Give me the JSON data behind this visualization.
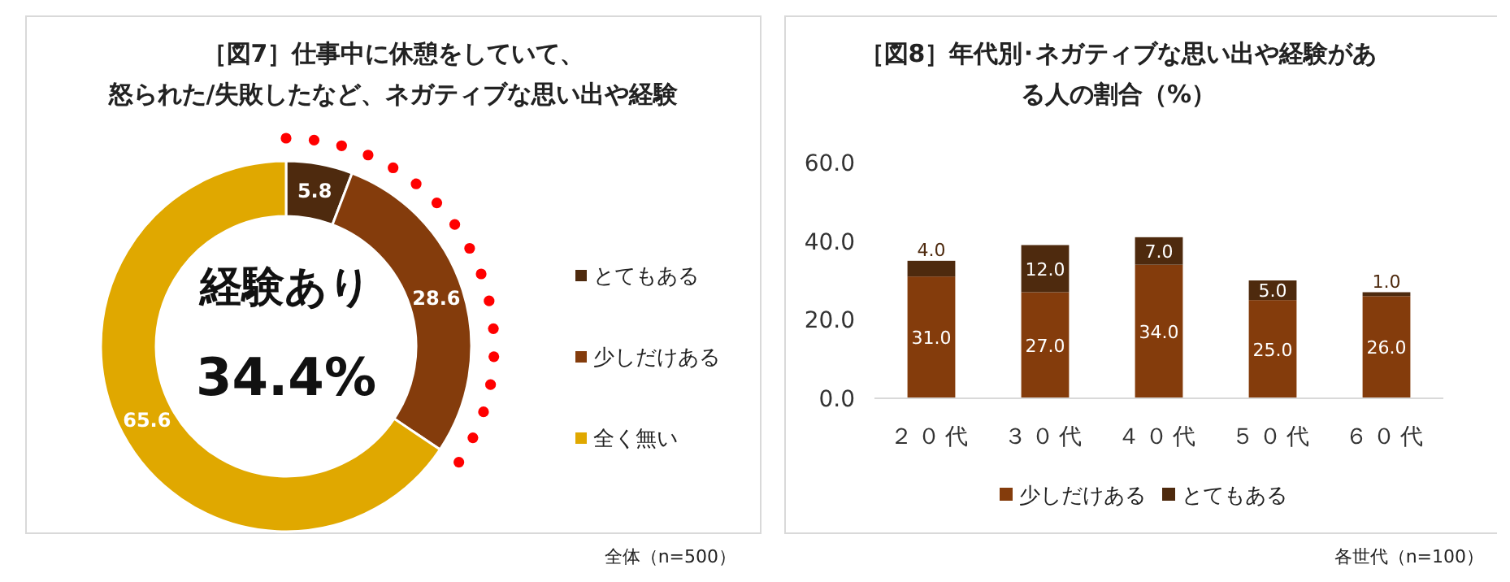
{
  "chart_data": [
    {
      "type": "donut",
      "title": "［図7］仕事中に休憩をしていて、怒られた/失敗したなど、ネガティブな思い出や経験",
      "categories": [
        "とてもある",
        "少しだけある",
        "全く無い"
      ],
      "values": [
        5.8,
        28.6,
        65.6
      ],
      "colors": [
        "#4e2a0e",
        "#843c0c",
        "#e0a800"
      ],
      "data_labels": true,
      "legend": "right",
      "annotations": [
        "経験あり",
        "34.4%",
        "全体（n=500）"
      ]
    },
    {
      "type": "bar",
      "title": "［図8］年代別･ネガティブな思い出や経験がある人の割合（%）",
      "categories": [
        "２０代",
        "３０代",
        "４０代",
        "５０代",
        "６０代"
      ],
      "stacked": true,
      "ylim": [
        0,
        60
      ],
      "yticks": [
        {
          "value": 0,
          "label": "0.0"
        },
        {
          "value": 20,
          "label": "20.0"
        },
        {
          "value": 40,
          "label": "40.0"
        },
        {
          "value": 60,
          "label": "60.0"
        }
      ],
      "legend": "bottom",
      "annotations": [
        "各世代（n=100）"
      ],
      "series": [
        {
          "name": "少しだけある",
          "color": "#843c0c",
          "values": [
            31.0,
            27.0,
            34.0,
            25.0,
            26.0
          ],
          "value_labels": [
            "31.0",
            "27.0",
            "34.0",
            "25.0",
            "26.0"
          ]
        },
        {
          "name": "とてもある",
          "color": "#4e2a0e",
          "values": [
            4.0,
            12.0,
            7.0,
            5.0,
            1.0
          ],
          "value_labels": [
            "4.0",
            "12.0",
            "7.0",
            "5.0",
            "1.0"
          ]
        }
      ]
    }
  ]
}
